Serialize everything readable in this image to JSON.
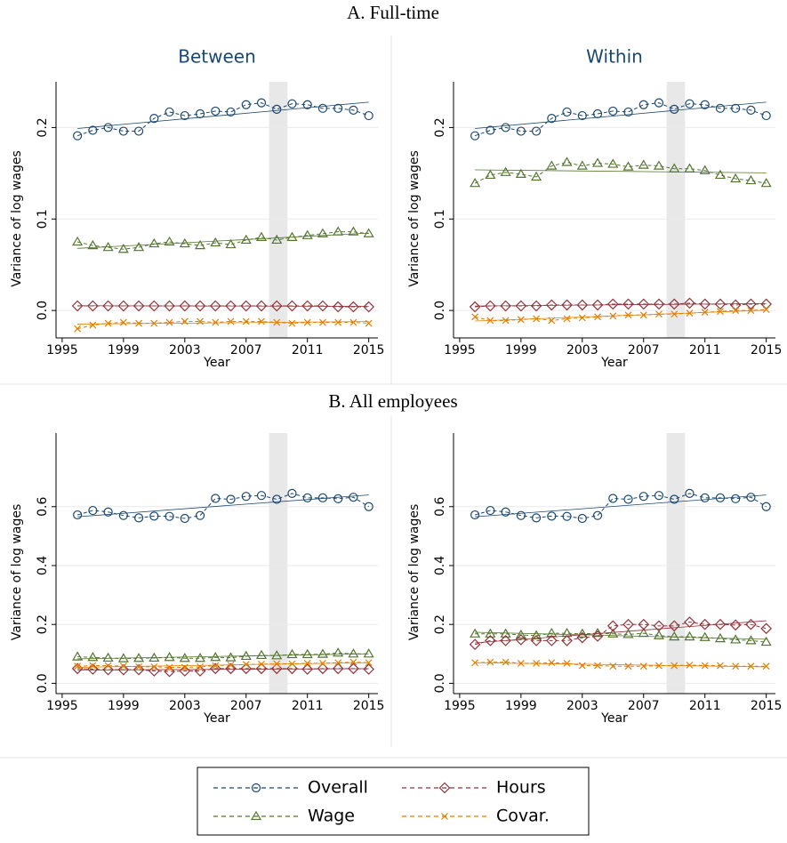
{
  "sections": [
    "A. Full-time",
    "B. All employees"
  ],
  "chart_data": [
    {
      "type": "line",
      "title": "Between",
      "x_label": "Year",
      "y_label": "Variance of log wages",
      "x": [
        1996,
        1997,
        1998,
        1999,
        2000,
        2001,
        2002,
        2003,
        2004,
        2005,
        2006,
        2007,
        2008,
        2009,
        2010,
        2011,
        2012,
        2013,
        2014,
        2015
      ],
      "xlim": [
        1994.6,
        2015.6
      ],
      "xticks": [
        1995,
        1999,
        2003,
        2007,
        2011,
        2015
      ],
      "ylim": [
        -0.03,
        0.25
      ],
      "yticks": [
        {
          "value": 0,
          "label": "0.0"
        },
        0.1,
        0.2
      ],
      "grid": true,
      "shaded_band": [
        2008.5,
        2009.7
      ],
      "series": [
        {
          "name": "Overall",
          "color": "#1a476f",
          "marker": "circle",
          "values": [
            0.191,
            0.197,
            0.2,
            0.196,
            0.196,
            0.21,
            0.217,
            0.213,
            0.215,
            0.218,
            0.217,
            0.225,
            0.227,
            0.22,
            0.226,
            0.225,
            0.221,
            0.221,
            0.219,
            0.213
          ]
        },
        {
          "name": "Wage",
          "color": "#55752f",
          "marker": "triangle",
          "values": [
            0.075,
            0.071,
            0.069,
            0.067,
            0.069,
            0.073,
            0.075,
            0.073,
            0.071,
            0.074,
            0.072,
            0.077,
            0.08,
            0.077,
            0.08,
            0.082,
            0.084,
            0.086,
            0.086,
            0.084
          ]
        },
        {
          "name": "Hours",
          "color": "#90353b",
          "marker": "diamond",
          "values": [
            0.005,
            0.005,
            0.005,
            0.005,
            0.005,
            0.005,
            0.005,
            0.005,
            0.005,
            0.005,
            0.005,
            0.005,
            0.005,
            0.005,
            0.005,
            0.005,
            0.005,
            0.004,
            0.004,
            0.004
          ]
        },
        {
          "name": "Covar.",
          "color": "#e37e00",
          "marker": "x",
          "values": [
            -0.02,
            -0.016,
            -0.014,
            -0.013,
            -0.014,
            -0.014,
            -0.013,
            -0.012,
            -0.012,
            -0.013,
            -0.012,
            -0.012,
            -0.012,
            -0.013,
            -0.014,
            -0.013,
            -0.013,
            -0.013,
            -0.013,
            -0.014
          ]
        }
      ]
    },
    {
      "type": "line",
      "title": "Within",
      "x_label": "Year",
      "y_label": "Variance of log wages",
      "x": [
        1996,
        1997,
        1998,
        1999,
        2000,
        2001,
        2002,
        2003,
        2004,
        2005,
        2006,
        2007,
        2008,
        2009,
        2010,
        2011,
        2012,
        2013,
        2014,
        2015
      ],
      "xlim": [
        1994.6,
        2015.6
      ],
      "xticks": [
        1995,
        1999,
        2003,
        2007,
        2011,
        2015
      ],
      "ylim": [
        -0.03,
        0.25
      ],
      "yticks": [
        {
          "value": 0,
          "label": "0.0"
        },
        0.1,
        0.2
      ],
      "grid": true,
      "shaded_band": [
        2008.5,
        2009.7
      ],
      "series": [
        {
          "name": "Overall",
          "color": "#1a476f",
          "marker": "circle",
          "values": [
            0.191,
            0.197,
            0.2,
            0.196,
            0.196,
            0.21,
            0.217,
            0.213,
            0.215,
            0.218,
            0.217,
            0.225,
            0.227,
            0.22,
            0.226,
            0.225,
            0.221,
            0.221,
            0.219,
            0.213
          ]
        },
        {
          "name": "Wage",
          "color": "#55752f",
          "marker": "triangle",
          "values": [
            0.139,
            0.148,
            0.151,
            0.149,
            0.146,
            0.158,
            0.162,
            0.158,
            0.161,
            0.16,
            0.157,
            0.159,
            0.158,
            0.155,
            0.155,
            0.153,
            0.148,
            0.144,
            0.142,
            0.139
          ]
        },
        {
          "name": "Hours",
          "color": "#90353b",
          "marker": "diamond",
          "values": [
            0.004,
            0.005,
            0.005,
            0.005,
            0.005,
            0.006,
            0.006,
            0.006,
            0.006,
            0.007,
            0.007,
            0.007,
            0.007,
            0.007,
            0.008,
            0.007,
            0.007,
            0.006,
            0.007,
            0.007
          ]
        },
        {
          "name": "Covar.",
          "color": "#e37e00",
          "marker": "x",
          "values": [
            -0.007,
            -0.011,
            -0.011,
            -0.01,
            -0.009,
            -0.011,
            -0.009,
            -0.008,
            -0.007,
            -0.006,
            -0.005,
            -0.005,
            -0.004,
            -0.004,
            -0.003,
            -0.002,
            -0.001,
            0,
            0,
            0.001
          ]
        }
      ]
    },
    {
      "type": "line",
      "x_label": "Year",
      "y_label": "Variance of log wages",
      "x": [
        1996,
        1997,
        1998,
        1999,
        2000,
        2001,
        2002,
        2003,
        2004,
        2005,
        2006,
        2007,
        2008,
        2009,
        2010,
        2011,
        2012,
        2013,
        2014,
        2015
      ],
      "xlim": [
        1994.6,
        2015.6
      ],
      "xticks": [
        1995,
        1999,
        2003,
        2007,
        2011,
        2015
      ],
      "ylim": [
        -0.035,
        0.85
      ],
      "yticks": [
        {
          "value": 0,
          "label": "0.0"
        },
        0.2,
        0.4,
        0.6
      ],
      "grid": true,
      "shaded_band": [
        2008.5,
        2009.7
      ],
      "series": [
        {
          "name": "Overall",
          "color": "#1a476f",
          "marker": "circle",
          "values": [
            0.572,
            0.587,
            0.582,
            0.57,
            0.562,
            0.568,
            0.567,
            0.56,
            0.57,
            0.628,
            0.625,
            0.635,
            0.638,
            0.625,
            0.645,
            0.63,
            0.63,
            0.627,
            0.632,
            0.6
          ]
        },
        {
          "name": "Wage",
          "color": "#55752f",
          "marker": "triangle",
          "values": [
            0.09,
            0.088,
            0.086,
            0.084,
            0.085,
            0.086,
            0.088,
            0.085,
            0.085,
            0.088,
            0.087,
            0.092,
            0.095,
            0.094,
            0.098,
            0.098,
            0.099,
            0.103,
            0.1,
            0.1
          ]
        },
        {
          "name": "Hours",
          "color": "#90353b",
          "marker": "diamond",
          "values": [
            0.05,
            0.048,
            0.046,
            0.046,
            0.046,
            0.042,
            0.04,
            0.042,
            0.042,
            0.05,
            0.05,
            0.05,
            0.05,
            0.05,
            0.05,
            0.048,
            0.05,
            0.05,
            0.05,
            0.048
          ]
        },
        {
          "name": "Covar.",
          "color": "#e37e00",
          "marker": "x",
          "values": [
            0.058,
            0.06,
            0.06,
            0.058,
            0.056,
            0.056,
            0.054,
            0.054,
            0.056,
            0.06,
            0.062,
            0.064,
            0.065,
            0.066,
            0.066,
            0.068,
            0.068,
            0.07,
            0.072,
            0.07
          ]
        }
      ]
    },
    {
      "type": "line",
      "x_label": "Year",
      "y_label": "Variance of log wages",
      "x": [
        1996,
        1997,
        1998,
        1999,
        2000,
        2001,
        2002,
        2003,
        2004,
        2005,
        2006,
        2007,
        2008,
        2009,
        2010,
        2011,
        2012,
        2013,
        2014,
        2015
      ],
      "xlim": [
        1994.6,
        2015.6
      ],
      "xticks": [
        1995,
        1999,
        2003,
        2007,
        2011,
        2015
      ],
      "ylim": [
        -0.035,
        0.85
      ],
      "yticks": [
        {
          "value": 0,
          "label": "0.0"
        },
        0.2,
        0.4,
        0.6
      ],
      "grid": true,
      "shaded_band": [
        2008.5,
        2009.7
      ],
      "series": [
        {
          "name": "Overall",
          "color": "#1a476f",
          "marker": "circle",
          "values": [
            0.572,
            0.587,
            0.582,
            0.57,
            0.562,
            0.568,
            0.567,
            0.56,
            0.57,
            0.628,
            0.625,
            0.635,
            0.638,
            0.625,
            0.645,
            0.63,
            0.63,
            0.627,
            0.632,
            0.6
          ]
        },
        {
          "name": "Wage",
          "color": "#55752f",
          "marker": "triangle",
          "values": [
            0.168,
            0.168,
            0.168,
            0.164,
            0.162,
            0.17,
            0.17,
            0.168,
            0.17,
            0.168,
            0.166,
            0.17,
            0.162,
            0.158,
            0.158,
            0.156,
            0.152,
            0.148,
            0.145,
            0.14
          ]
        },
        {
          "name": "Hours",
          "color": "#90353b",
          "marker": "diamond",
          "values": [
            0.132,
            0.145,
            0.145,
            0.148,
            0.145,
            0.145,
            0.145,
            0.155,
            0.16,
            0.195,
            0.2,
            0.2,
            0.195,
            0.195,
            0.208,
            0.2,
            0.2,
            0.198,
            0.2,
            0.186
          ]
        },
        {
          "name": "Covar.",
          "color": "#e37e00",
          "marker": "x",
          "values": [
            0.07,
            0.072,
            0.072,
            0.068,
            0.068,
            0.07,
            0.068,
            0.06,
            0.06,
            0.058,
            0.058,
            0.058,
            0.06,
            0.06,
            0.062,
            0.06,
            0.06,
            0.058,
            0.058,
            0.058
          ]
        }
      ]
    }
  ]
}
